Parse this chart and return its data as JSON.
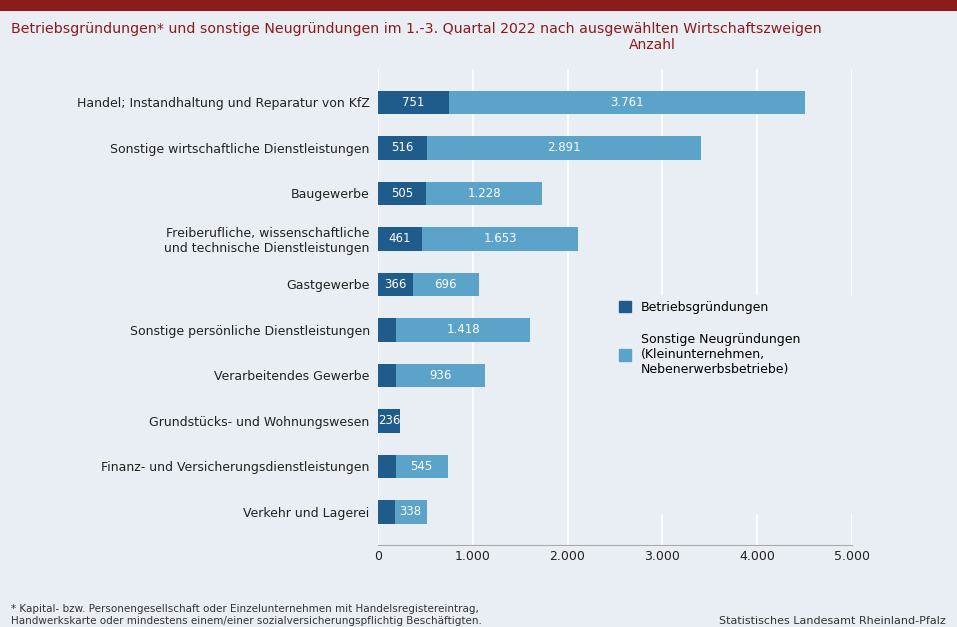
{
  "title": "Betriebsgründungen* und sonstige Neugründungen im 1.-3. Quartal 2022 nach ausgewählten Wirtschaftszweigen",
  "title_color": "#8B1A1A",
  "anzahl_label": "Anzahl",
  "anzahl_color": "#8B1A1A",
  "categories": [
    "Handel; Instandhaltung und Reparatur von KfZ",
    "Sonstige wirtschaftliche Dienstleistungen",
    "Baugewerbe",
    "Freiberufliche, wissenschaftliche\nund technische Dienstleistungen",
    "Gastgewerbe",
    "Sonstige persönliche Dienstleistungen",
    "Verarbeitendes Gewerbe",
    "Grundstücks- und Wohnungswesen",
    "Finanz- und Versicherungsdienstleistungen",
    "Verkehr und Lagerei"
  ],
  "betrieb_values": [
    751,
    516,
    505,
    461,
    366,
    189,
    195,
    236,
    189,
    175
  ],
  "sonstige_values": [
    3761,
    2891,
    1228,
    1653,
    696,
    1418,
    936,
    0,
    545,
    338
  ],
  "betrieb_labels": [
    "751",
    "516",
    "505",
    "461",
    "366",
    "",
    "",
    "236",
    "",
    ""
  ],
  "sonstige_labels": [
    "3.761",
    "2.891",
    "1.228",
    "1.653",
    "696",
    "1.418",
    "936",
    "",
    "545",
    "338"
  ],
  "color_betrieb": "#1F5C8B",
  "color_sonstige": "#5BA3C9",
  "background_color": "#E8EEF4",
  "xlim": [
    0,
    5000
  ],
  "xticks": [
    0,
    1000,
    2000,
    3000,
    4000,
    5000
  ],
  "xtick_labels": [
    "0",
    "1.000",
    "2.000",
    "3.000",
    "4.000",
    "5.000"
  ],
  "footnote_line1": "* Kapital- bzw. Personengesellschaft oder Einzelunternehmen mit Handelsregistereintrag,",
  "footnote_line2": "Handwerkskarte oder mindestens einem/einer sozialversicherungspflichtig Beschäftigten.",
  "source": "Statistisches Landesamt Rheinland-Pfalz",
  "legend_betrieb": "Betriebsgründungen",
  "legend_sonstige": "Sonstige Neugründungen\n(Kleinunternehmen,\nNebenerwerbsbetriebe)",
  "top_bar_color": "#8B1A1A",
  "bar_height": 0.52,
  "label_fontsize": 8.5,
  "tick_fontsize": 9,
  "title_fontsize": 10.2,
  "legend_fontsize": 9
}
